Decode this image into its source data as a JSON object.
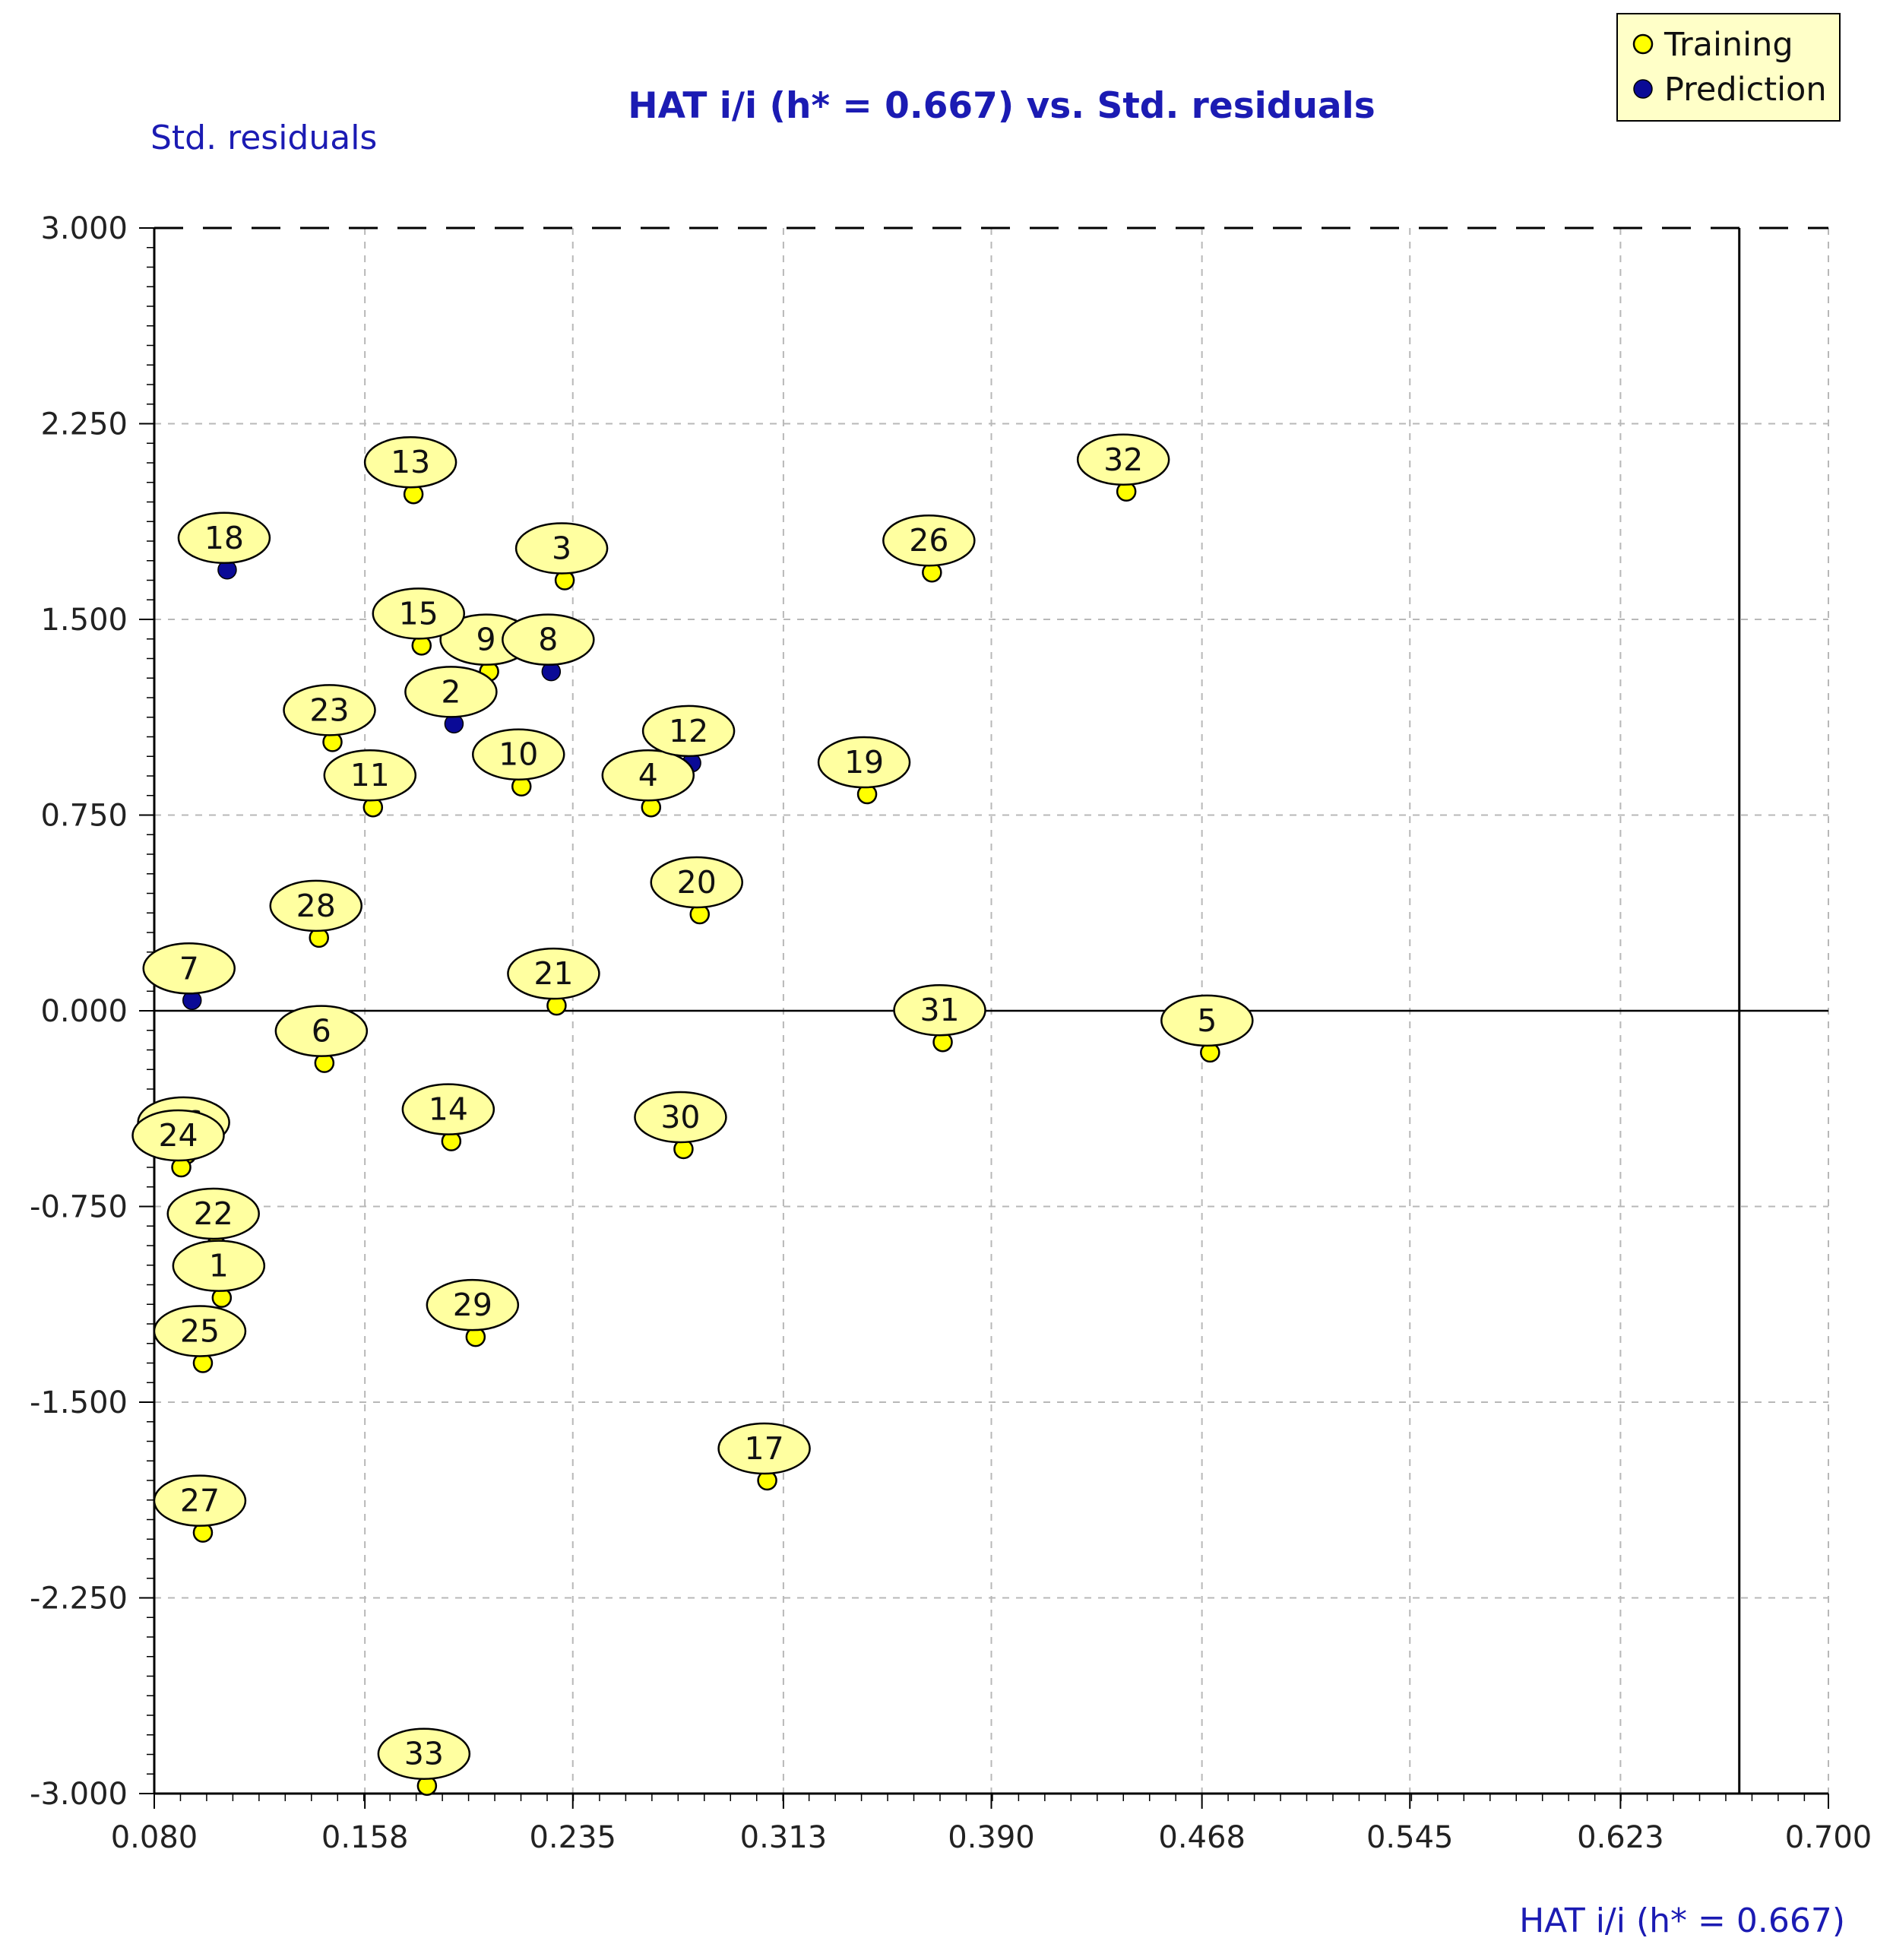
{
  "chart_data": {
    "type": "scatter",
    "title": "HAT i/i (h* = 0.667) vs. Std. residuals",
    "xlabel": "HAT i/i (h* = 0.667)",
    "ylabel": "Std. residuals",
    "xlim": [
      0.08,
      0.7
    ],
    "ylim": [
      -3.0,
      3.0
    ],
    "xticks": [
      "0.080",
      "0.158",
      "0.235",
      "0.313",
      "0.390",
      "0.468",
      "0.545",
      "0.623",
      "0.700"
    ],
    "yticks": [
      "3.000",
      "2.250",
      "1.500",
      "0.750",
      "0.000",
      "-0.750",
      "-1.500",
      "-2.250",
      "-3.000"
    ],
    "x_minor_step": 0.0097,
    "y_minor_step": 0.075,
    "h_star": 0.667,
    "warning_lines_y": [
      3.0,
      -3.0
    ],
    "zero_line_y": 0.0,
    "grid": true,
    "legend_position": "top-right",
    "colors": {
      "training": "#ffff00",
      "prediction": "#0a0a96",
      "label_bg": "#ffffa0",
      "title": "#1b1bb3"
    },
    "series": [
      {
        "name": "Training",
        "points": [
          {
            "id": "1",
            "x": 0.105,
            "y": -1.1
          },
          {
            "id": "3",
            "x": 0.232,
            "y": 1.65
          },
          {
            "id": "4",
            "x": 0.264,
            "y": 0.78
          },
          {
            "id": "5",
            "x": 0.471,
            "y": -0.16
          },
          {
            "id": "6",
            "x": 0.143,
            "y": -0.2
          },
          {
            "id": "9",
            "x": 0.204,
            "y": 1.3
          },
          {
            "id": "10",
            "x": 0.216,
            "y": 0.86
          },
          {
            "id": "11",
            "x": 0.161,
            "y": 0.78
          },
          {
            "id": "13",
            "x": 0.176,
            "y": 1.98
          },
          {
            "id": "14",
            "x": 0.19,
            "y": -0.5
          },
          {
            "id": "15",
            "x": 0.179,
            "y": 1.4
          },
          {
            "id": "16",
            "x": 0.092,
            "y": -0.55
          },
          {
            "id": "17",
            "x": 0.307,
            "y": -1.8
          },
          {
            "id": "19",
            "x": 0.344,
            "y": 0.83
          },
          {
            "id": "20",
            "x": 0.282,
            "y": 0.37
          },
          {
            "id": "21",
            "x": 0.229,
            "y": 0.02
          },
          {
            "id": "22",
            "x": 0.103,
            "y": -0.9
          },
          {
            "id": "23",
            "x": 0.146,
            "y": 1.03
          },
          {
            "id": "24",
            "x": 0.09,
            "y": -0.6
          },
          {
            "id": "25",
            "x": 0.098,
            "y": -1.35
          },
          {
            "id": "26",
            "x": 0.368,
            "y": 1.68
          },
          {
            "id": "27",
            "x": 0.098,
            "y": -2.0
          },
          {
            "id": "28",
            "x": 0.141,
            "y": 0.28
          },
          {
            "id": "29",
            "x": 0.199,
            "y": -1.25
          },
          {
            "id": "30",
            "x": 0.276,
            "y": -0.53
          },
          {
            "id": "31",
            "x": 0.372,
            "y": -0.12
          },
          {
            "id": "32",
            "x": 0.44,
            "y": 1.99
          },
          {
            "id": "33",
            "x": 0.181,
            "y": -2.97
          }
        ]
      },
      {
        "name": "Prediction",
        "points": [
          {
            "id": "2",
            "x": 0.191,
            "y": 1.1
          },
          {
            "id": "7",
            "x": 0.094,
            "y": 0.04
          },
          {
            "id": "8",
            "x": 0.227,
            "y": 1.3
          },
          {
            "id": "12",
            "x": 0.279,
            "y": 0.95
          },
          {
            "id": "18",
            "x": 0.107,
            "y": 1.69
          }
        ]
      }
    ]
  }
}
